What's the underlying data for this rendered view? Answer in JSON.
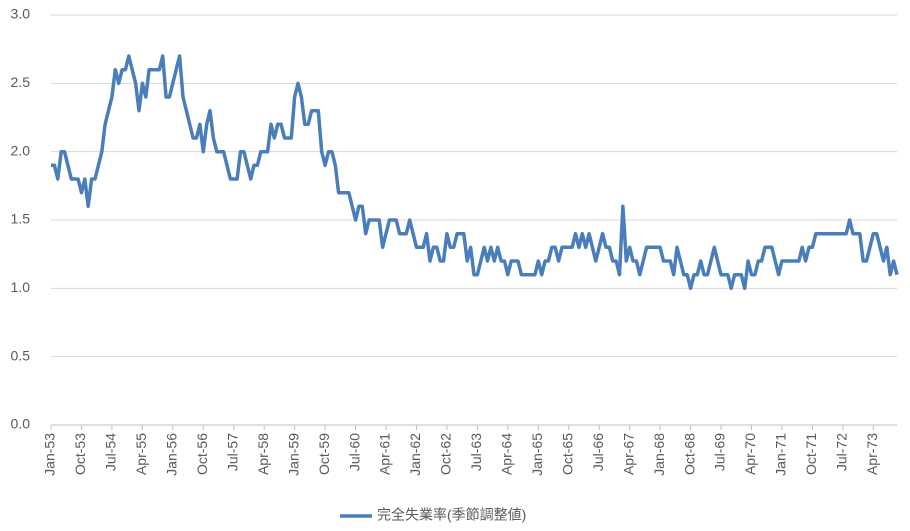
{
  "chart_data": {
    "type": "line",
    "categories": [
      "Jan-53",
      null,
      null,
      null,
      null,
      null,
      null,
      null,
      null,
      "Oct-53",
      null,
      null,
      null,
      null,
      null,
      null,
      null,
      null,
      "Jul-54",
      null,
      null,
      null,
      null,
      null,
      null,
      null,
      null,
      "Apr-55",
      null,
      null,
      null,
      null,
      null,
      null,
      null,
      null,
      "Jan-56",
      null,
      null,
      null,
      null,
      null,
      null,
      null,
      null,
      "Oct-56",
      null,
      null,
      null,
      null,
      null,
      null,
      null,
      null,
      "Jul-57",
      null,
      null,
      null,
      null,
      null,
      null,
      null,
      null,
      "Apr-58",
      null,
      null,
      null,
      null,
      null,
      null,
      null,
      null,
      "Jan-59",
      null,
      null,
      null,
      null,
      null,
      null,
      null,
      null,
      "Oct-59",
      null,
      null,
      null,
      null,
      null,
      null,
      null,
      null,
      "Jul-60",
      null,
      null,
      null,
      null,
      null,
      null,
      null,
      null,
      "Apr-61",
      null,
      null,
      null,
      null,
      null,
      null,
      null,
      null,
      "Jan-62",
      null,
      null,
      null,
      null,
      null,
      null,
      null,
      null,
      "Oct-62",
      null,
      null,
      null,
      null,
      null,
      null,
      null,
      null,
      "Jul-63",
      null,
      null,
      null,
      null,
      null,
      null,
      null,
      null,
      "Apr-64",
      null,
      null,
      null,
      null,
      null,
      null,
      null,
      null,
      "Jan-65",
      null,
      null,
      null,
      null,
      null,
      null,
      null,
      null,
      "Oct-65",
      null,
      null,
      null,
      null,
      null,
      null,
      null,
      null,
      "Jul-66",
      null,
      null,
      null,
      null,
      null,
      null,
      null,
      null,
      "Apr-67",
      null,
      null,
      null,
      null,
      null,
      null,
      null,
      null,
      "Jan-68",
      null,
      null,
      null,
      null,
      null,
      null,
      null,
      null,
      "Oct-68",
      null,
      null,
      null,
      null,
      null,
      null,
      null,
      null,
      "Jul-69",
      null,
      null,
      null,
      null,
      null,
      null,
      null,
      null,
      "Apr-70",
      null,
      null,
      null,
      null,
      null,
      null,
      null,
      null,
      "Jan-71",
      null,
      null,
      null,
      null,
      null,
      null,
      null,
      null,
      "Oct-71",
      null,
      null,
      null,
      null,
      null,
      null,
      null,
      null,
      "Jul-72",
      null,
      null,
      null,
      null,
      null,
      null,
      null,
      null,
      "Apr-73",
      null,
      null,
      null,
      null,
      null,
      null,
      null
    ],
    "series": [
      {
        "name": "完全失業率(季節調整値)",
        "color": "#4a7ebb",
        "values": [
          1.9,
          1.9,
          1.8,
          2.0,
          2.0,
          1.9,
          1.8,
          1.8,
          1.8,
          1.7,
          1.8,
          1.6,
          1.8,
          1.8,
          1.9,
          2.0,
          2.2,
          2.3,
          2.4,
          2.6,
          2.5,
          2.6,
          2.6,
          2.7,
          2.6,
          2.5,
          2.3,
          2.5,
          2.4,
          2.6,
          2.6,
          2.6,
          2.6,
          2.7,
          2.4,
          2.4,
          2.5,
          2.6,
          2.7,
          2.4,
          2.3,
          2.2,
          2.1,
          2.1,
          2.2,
          2.0,
          2.2,
          2.3,
          2.1,
          2.0,
          2.0,
          2.0,
          1.9,
          1.8,
          1.8,
          1.8,
          2.0,
          2.0,
          1.9,
          1.8,
          1.9,
          1.9,
          2.0,
          2.0,
          2.0,
          2.2,
          2.1,
          2.2,
          2.2,
          2.1,
          2.1,
          2.1,
          2.4,
          2.5,
          2.4,
          2.2,
          2.2,
          2.3,
          2.3,
          2.3,
          2.0,
          1.9,
          2.0,
          2.0,
          1.9,
          1.7,
          1.7,
          1.7,
          1.7,
          1.6,
          1.5,
          1.6,
          1.6,
          1.4,
          1.5,
          1.5,
          1.5,
          1.5,
          1.3,
          1.4,
          1.5,
          1.5,
          1.5,
          1.4,
          1.4,
          1.4,
          1.5,
          1.4,
          1.3,
          1.3,
          1.3,
          1.4,
          1.2,
          1.3,
          1.3,
          1.2,
          1.2,
          1.4,
          1.3,
          1.3,
          1.4,
          1.4,
          1.4,
          1.2,
          1.3,
          1.1,
          1.1,
          1.2,
          1.3,
          1.2,
          1.3,
          1.2,
          1.3,
          1.2,
          1.2,
          1.1,
          1.2,
          1.2,
          1.2,
          1.1,
          1.1,
          1.1,
          1.1,
          1.1,
          1.2,
          1.1,
          1.2,
          1.2,
          1.3,
          1.3,
          1.2,
          1.3,
          1.3,
          1.3,
          1.3,
          1.4,
          1.3,
          1.4,
          1.3,
          1.4,
          1.3,
          1.2,
          1.3,
          1.4,
          1.3,
          1.3,
          1.2,
          1.2,
          1.1,
          1.6,
          1.2,
          1.3,
          1.2,
          1.2,
          1.1,
          1.2,
          1.3,
          1.3,
          1.3,
          1.3,
          1.3,
          1.2,
          1.2,
          1.2,
          1.1,
          1.3,
          1.2,
          1.1,
          1.1,
          1.0,
          1.1,
          1.1,
          1.2,
          1.1,
          1.1,
          1.2,
          1.3,
          1.2,
          1.1,
          1.1,
          1.1,
          1.0,
          1.1,
          1.1,
          1.1,
          1.0,
          1.2,
          1.1,
          1.1,
          1.2,
          1.2,
          1.3,
          1.3,
          1.3,
          1.2,
          1.1,
          1.2,
          1.2,
          1.2,
          1.2,
          1.2,
          1.2,
          1.3,
          1.2,
          1.3,
          1.3,
          1.4,
          1.4,
          1.4,
          1.4,
          1.4,
          1.4,
          1.4,
          1.4,
          1.4,
          1.4,
          1.5,
          1.4,
          1.4,
          1.4,
          1.2,
          1.2,
          1.3,
          1.4,
          1.4,
          1.3,
          1.2,
          1.3,
          1.1,
          1.2,
          1.1
        ]
      }
    ],
    "ylim": [
      0,
      3
    ],
    "yticks": [
      {
        "value": 0,
        "label": "0.0"
      },
      {
        "value": 0.5,
        "label": "0.5"
      },
      {
        "value": 1,
        "label": "1.0"
      },
      {
        "value": 1.5,
        "label": "1.5"
      },
      {
        "value": 2,
        "label": "2.0"
      },
      {
        "value": 2.5,
        "label": "2.5"
      },
      {
        "value": 3,
        "label": "3.0"
      }
    ],
    "grid": true
  }
}
